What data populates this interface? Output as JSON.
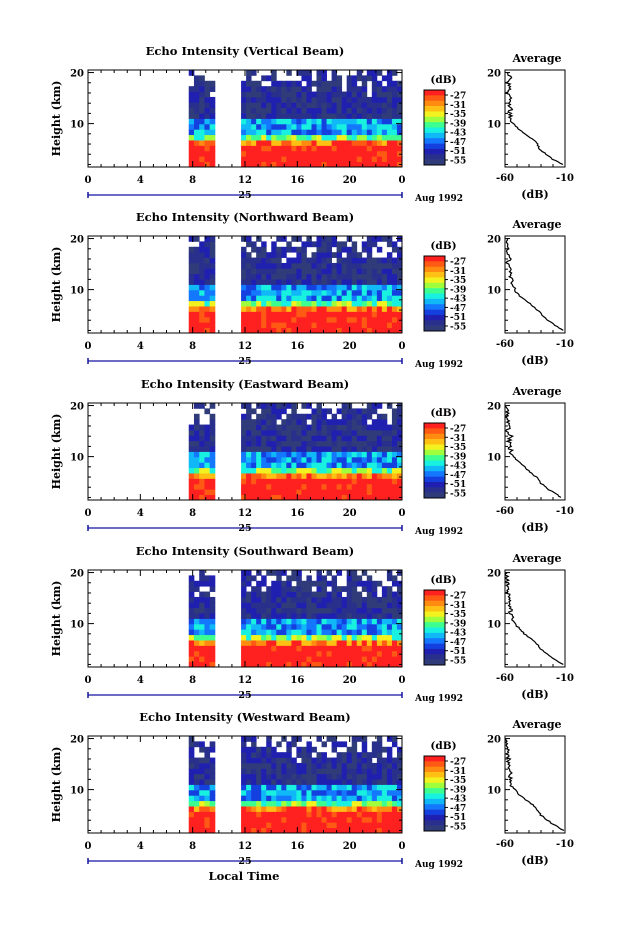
{
  "figure": {
    "bottom_label": "Local Time",
    "date_day": "25",
    "date_label": "Aug 1992"
  },
  "colorbar": {
    "unit": "(dB)",
    "ticks": [
      "-27",
      "-31",
      "-35",
      "-39",
      "-43",
      "-47",
      "-51",
      "-55"
    ],
    "colors": [
      "#ff2020",
      "#ff5a14",
      "#ff8c10",
      "#ffc014",
      "#f2f220",
      "#a0ff3c",
      "#3cff90",
      "#18f0e0",
      "#10b8f8",
      "#1478ff",
      "#1440e0",
      "#2020b0",
      "#28308c",
      "#303c7a"
    ]
  },
  "side_panel": {
    "title": "Average",
    "xlabel": "(dB)",
    "xticks": [
      "-60",
      "-10"
    ]
  },
  "chart_data": [
    {
      "type": "heatmap",
      "title": "Echo Intensity (Vertical Beam)",
      "ylabel": "Height (km)",
      "xlim": [
        0,
        24
      ],
      "ylim": [
        1.5,
        20.5
      ],
      "xticks": [
        0,
        4,
        8,
        12,
        16,
        20,
        24
      ],
      "yticks": [
        10,
        20
      ],
      "data_gap_hours": [
        [
          0,
          7.7
        ],
        [
          9.7,
          11.7
        ]
      ],
      "zlim": [
        -55,
        -27
      ],
      "mean_profile": {
        "xlim": [
          -60,
          -10
        ],
        "heights_km": [
          2,
          3,
          4,
          5,
          6,
          7,
          8,
          9,
          10,
          11,
          12,
          13,
          14,
          15,
          16,
          17,
          18,
          19,
          20
        ],
        "values_db": [
          -12,
          -20,
          -26,
          -31,
          -33,
          -37,
          -43,
          -49,
          -53,
          -55,
          -56,
          -55,
          -58,
          -56,
          -58,
          -55,
          -58,
          -56,
          -58
        ]
      }
    },
    {
      "type": "heatmap",
      "title": "Echo Intensity (Northward Beam)",
      "ylabel": "Height (km)",
      "xlim": [
        0,
        24
      ],
      "ylim": [
        1.5,
        20.5
      ],
      "xticks": [
        0,
        4,
        8,
        12,
        16,
        20,
        24
      ],
      "yticks": [
        10,
        20
      ],
      "data_gap_hours": [
        [
          0,
          7.7
        ],
        [
          9.7,
          11.7
        ]
      ],
      "zlim": [
        -55,
        -27
      ],
      "mean_profile": {
        "xlim": [
          -60,
          -10
        ],
        "heights_km": [
          2,
          3,
          4,
          5,
          6,
          7,
          8,
          9,
          10,
          11,
          12,
          13,
          14,
          15,
          16,
          17,
          18,
          19,
          20
        ],
        "values_db": [
          -11,
          -18,
          -24,
          -29,
          -33,
          -38,
          -44,
          -49,
          -52,
          -54,
          -55,
          -56,
          -55,
          -58,
          -56,
          -57,
          -58,
          -59,
          -58
        ]
      }
    },
    {
      "type": "heatmap",
      "title": "Echo Intensity (Eastward Beam)",
      "ylabel": "Height (km)",
      "xlim": [
        0,
        24
      ],
      "ylim": [
        1.5,
        20.5
      ],
      "xticks": [
        0,
        4,
        8,
        12,
        16,
        20,
        24
      ],
      "yticks": [
        10,
        20
      ],
      "data_gap_hours": [
        [
          0,
          7.7
        ],
        [
          9.7,
          11.7
        ]
      ],
      "zlim": [
        -55,
        -27
      ],
      "mean_profile": {
        "xlim": [
          -60,
          -10
        ],
        "heights_km": [
          2,
          3,
          4,
          5,
          6,
          7,
          8,
          9,
          10,
          11,
          12,
          13,
          14,
          15,
          16,
          17,
          18,
          19,
          20
        ],
        "values_db": [
          -13,
          -20,
          -26,
          -31,
          -34,
          -39,
          -44,
          -49,
          -53,
          -55,
          -56,
          -57,
          -55,
          -58,
          -57,
          -58,
          -59,
          -58,
          -59
        ]
      }
    },
    {
      "type": "heatmap",
      "title": "Echo Intensity (Southward Beam)",
      "ylabel": "Height (km)",
      "xlim": [
        0,
        24
      ],
      "ylim": [
        1.5,
        20.5
      ],
      "xticks": [
        0,
        4,
        8,
        12,
        16,
        20,
        24
      ],
      "yticks": [
        10,
        20
      ],
      "data_gap_hours": [
        [
          0,
          7.7
        ],
        [
          9.7,
          11.7
        ]
      ],
      "zlim": [
        -55,
        -27
      ],
      "mean_profile": {
        "xlim": [
          -60,
          -10
        ],
        "heights_km": [
          2,
          3,
          4,
          5,
          6,
          7,
          8,
          9,
          10,
          11,
          12,
          13,
          14,
          15,
          16,
          17,
          18,
          19,
          20
        ],
        "values_db": [
          -12,
          -19,
          -25,
          -30,
          -33,
          -38,
          -44,
          -48,
          -52,
          -54,
          -56,
          -55,
          -57,
          -56,
          -58,
          -57,
          -58,
          -59,
          -58
        ]
      }
    },
    {
      "type": "heatmap",
      "title": "Echo Intensity (Westward Beam)",
      "ylabel": "Height (km)",
      "xlim": [
        0,
        24
      ],
      "ylim": [
        1.5,
        20.5
      ],
      "xticks": [
        0,
        4,
        8,
        12,
        16,
        20,
        24
      ],
      "yticks": [
        10,
        20
      ],
      "data_gap_hours": [
        [
          0,
          7.7
        ],
        [
          9.7,
          11.7
        ]
      ],
      "zlim": [
        -55,
        -27
      ],
      "mean_profile": {
        "xlim": [
          -60,
          -10
        ],
        "heights_km": [
          2,
          3,
          4,
          5,
          6,
          7,
          8,
          9,
          10,
          11,
          12,
          13,
          14,
          15,
          16,
          17,
          18,
          19,
          20
        ],
        "values_db": [
          -11,
          -18,
          -25,
          -30,
          -33,
          -37,
          -43,
          -48,
          -52,
          -55,
          -55,
          -56,
          -55,
          -58,
          -57,
          -58,
          -58,
          -59,
          -59
        ]
      }
    }
  ]
}
